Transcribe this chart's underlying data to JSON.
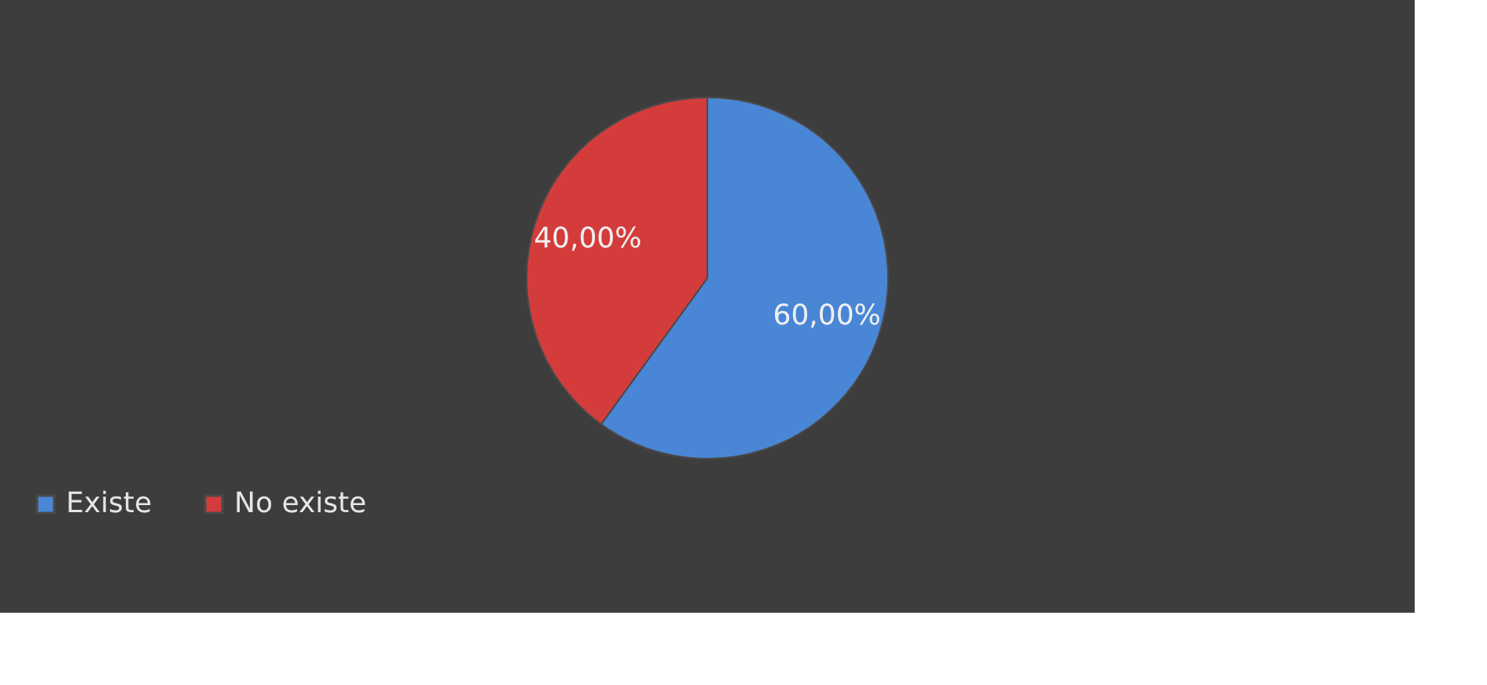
{
  "chart_data": {
    "type": "pie",
    "categories": [
      "Existe",
      "No existe"
    ],
    "values": [
      60,
      40
    ],
    "colors": [
      "#4a86d6",
      "#d43c3c"
    ],
    "value_labels": [
      "60,00%",
      "40,00%"
    ],
    "legend": "bottom"
  }
}
